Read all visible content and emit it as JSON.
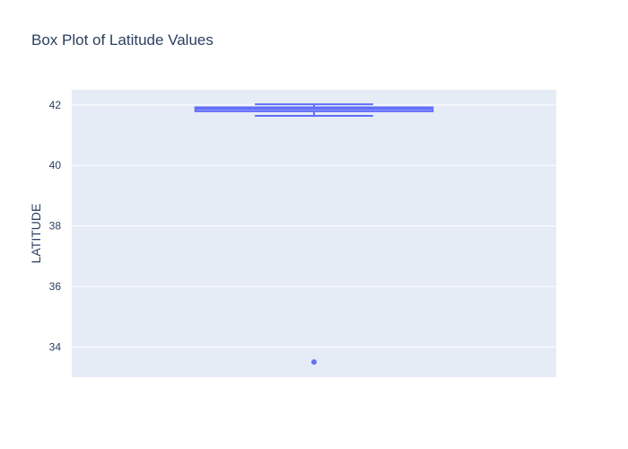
{
  "chart_data": {
    "type": "box",
    "title": "Box Plot of Latitude Values",
    "xlabel": "",
    "ylabel": "LATITUDE",
    "ylim": [
      33.0,
      42.5
    ],
    "yticks": [
      34,
      36,
      38,
      40,
      42
    ],
    "grid": true,
    "series": [
      {
        "min": 41.64,
        "q1": 41.79,
        "median": 41.87,
        "q3": 41.92,
        "max": 42.02,
        "outliers": [
          33.5
        ]
      }
    ]
  },
  "colors": {
    "plot_background": "#e5ecf6",
    "gridline": "#ffffff",
    "box_stroke": "#636efa",
    "box_fill": "rgba(99,110,250,0.5)",
    "text": "#2a3f5f"
  }
}
